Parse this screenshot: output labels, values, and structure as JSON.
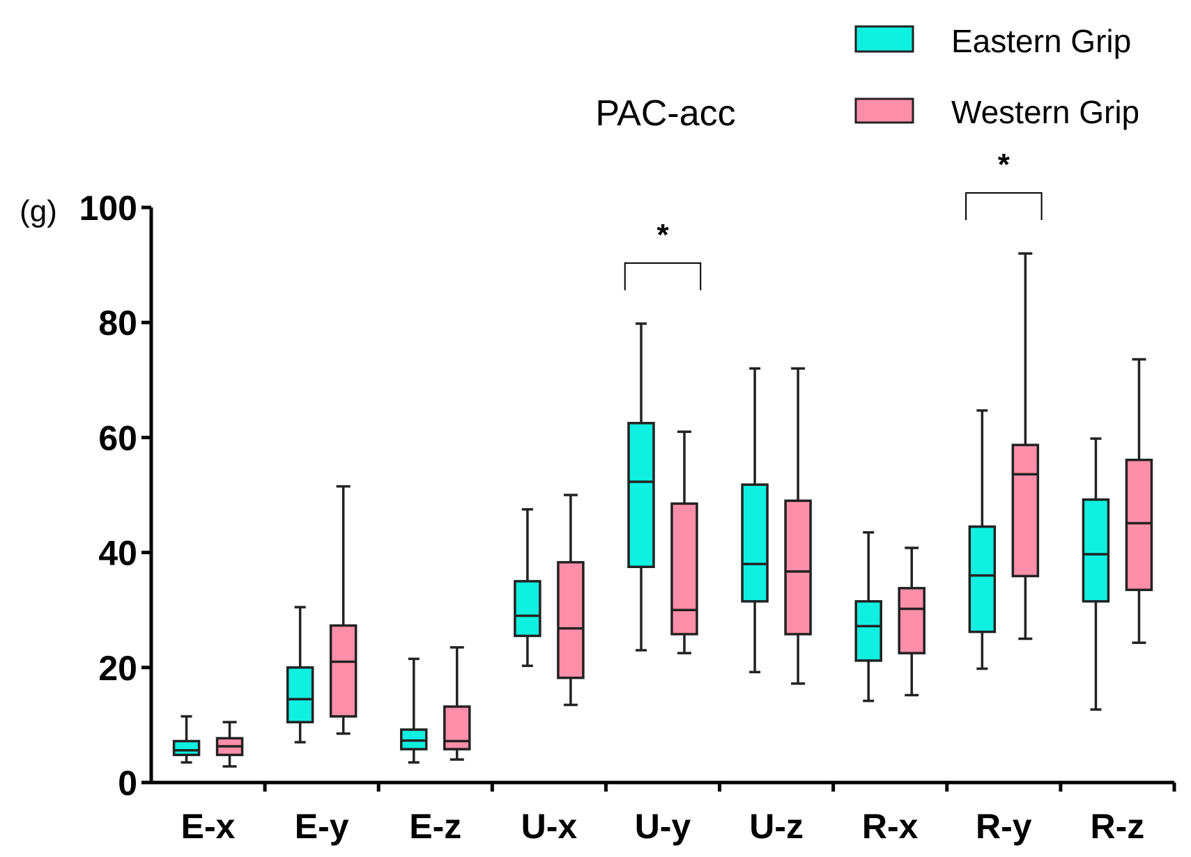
{
  "chart_data": {
    "type": "box",
    "title": "PAC-acc",
    "ylabel": "(g)",
    "xlabel": "",
    "ylim": [
      0,
      100
    ],
    "yticks": [
      0,
      20,
      40,
      60,
      80,
      100
    ],
    "categories": [
      "E-x",
      "E-y",
      "E-z",
      "U-x",
      "U-y",
      "U-z",
      "R-x",
      "R-y",
      "R-z"
    ],
    "series": [
      {
        "name": "Eastern Grip",
        "color": "#0ff0e0",
        "boxes": [
          {
            "min": 3.5,
            "q1": 4.8,
            "median": 5.6,
            "q3": 7.2,
            "max": 11.5
          },
          {
            "min": 7.0,
            "q1": 10.5,
            "median": 14.5,
            "q3": 20.0,
            "max": 30.5
          },
          {
            "min": 3.5,
            "q1": 5.8,
            "median": 7.3,
            "q3": 9.2,
            "max": 21.5
          },
          {
            "min": 20.3,
            "q1": 25.5,
            "median": 29.0,
            "q3": 35.0,
            "max": 47.5
          },
          {
            "min": 23.0,
            "q1": 37.5,
            "median": 52.3,
            "q3": 62.5,
            "max": 79.8
          },
          {
            "min": 19.2,
            "q1": 31.5,
            "median": 38.0,
            "q3": 51.8,
            "max": 72.0
          },
          {
            "min": 14.2,
            "q1": 21.2,
            "median": 27.2,
            "q3": 31.5,
            "max": 43.5
          },
          {
            "min": 19.8,
            "q1": 26.2,
            "median": 36.0,
            "q3": 44.5,
            "max": 64.7
          },
          {
            "min": 12.7,
            "q1": 31.5,
            "median": 39.7,
            "q3": 49.2,
            "max": 59.8
          }
        ]
      },
      {
        "name": "Western Grip",
        "color": "#ff8fa8",
        "boxes": [
          {
            "min": 2.8,
            "q1": 4.8,
            "median": 6.3,
            "q3": 7.7,
            "max": 10.5
          },
          {
            "min": 8.5,
            "q1": 11.5,
            "median": 21.0,
            "q3": 27.3,
            "max": 51.5
          },
          {
            "min": 4.0,
            "q1": 5.8,
            "median": 7.2,
            "q3": 13.2,
            "max": 23.5
          },
          {
            "min": 13.5,
            "q1": 18.2,
            "median": 26.8,
            "q3": 38.3,
            "max": 50.0
          },
          {
            "min": 22.5,
            "q1": 25.8,
            "median": 30.0,
            "q3": 48.5,
            "max": 61.0
          },
          {
            "min": 17.2,
            "q1": 25.8,
            "median": 36.7,
            "q3": 49.0,
            "max": 72.0
          },
          {
            "min": 15.2,
            "q1": 22.5,
            "median": 30.2,
            "q3": 33.8,
            "max": 40.8
          },
          {
            "min": 25.0,
            "q1": 35.9,
            "median": 53.6,
            "q3": 58.7,
            "max": 92.0
          },
          {
            "min": 24.3,
            "q1": 33.5,
            "median": 45.1,
            "q3": 56.1,
            "max": 73.6
          }
        ]
      }
    ],
    "significance": [
      {
        "category": "U-y",
        "label": "*"
      },
      {
        "category": "R-y",
        "label": "*"
      }
    ],
    "legend": {
      "position": "top-right",
      "items": [
        {
          "label": "Eastern Grip",
          "color": "#0ff0e0"
        },
        {
          "label": "Western Grip",
          "color": "#ff8fa8"
        }
      ]
    }
  }
}
